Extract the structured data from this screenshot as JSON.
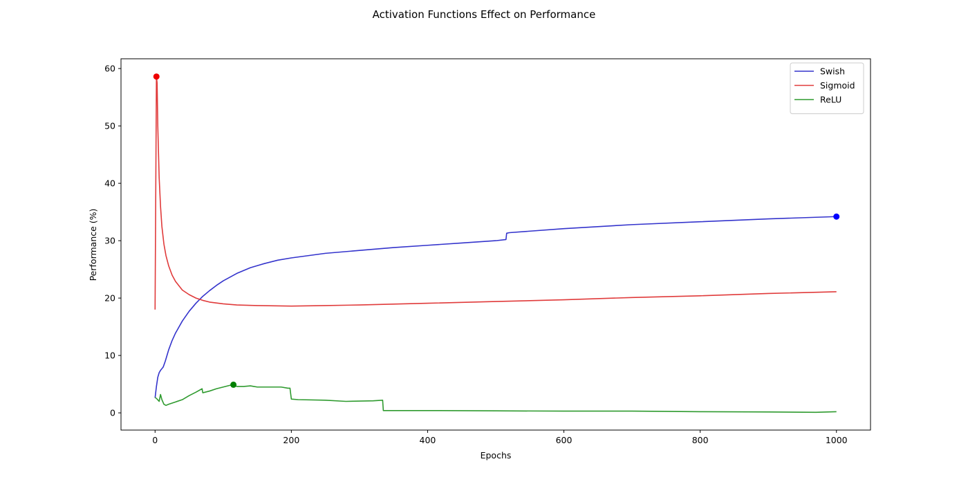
{
  "chart_data": {
    "type": "line",
    "title": "Activation Functions Effect on Performance",
    "xlabel": "Epochs",
    "ylabel": "Performance (%)",
    "xlim": [
      -50,
      1050
    ],
    "ylim": [
      -3,
      61.7
    ],
    "xticks": [
      0,
      200,
      400,
      600,
      800,
      1000
    ],
    "yticks": [
      0,
      10,
      20,
      30,
      40,
      50,
      60
    ],
    "grid": false,
    "legend_position": "upper-right",
    "series": [
      {
        "name": "Swish",
        "color": "#3333cc",
        "marker_color": "#0000ff",
        "x": [
          0,
          2,
          4,
          6,
          8,
          10,
          12,
          15,
          20,
          25,
          30,
          40,
          50,
          60,
          70,
          80,
          90,
          100,
          120,
          140,
          160,
          180,
          200,
          250,
          300,
          350,
          400,
          450,
          500,
          515,
          516,
          520,
          600,
          700,
          800,
          900,
          1000
        ],
        "y": [
          2.6,
          4.6,
          6.2,
          7.0,
          7.4,
          7.7,
          8.0,
          9.0,
          11.0,
          12.6,
          13.9,
          16.0,
          17.7,
          19.1,
          20.3,
          21.3,
          22.2,
          23.0,
          24.3,
          25.3,
          26.0,
          26.6,
          27.0,
          27.8,
          28.3,
          28.8,
          29.2,
          29.6,
          30.0,
          30.2,
          31.3,
          31.4,
          32.1,
          32.8,
          33.3,
          33.8,
          34.2
        ],
        "marker": {
          "x": 1000,
          "y": 34.2
        }
      },
      {
        "name": "Sigmoid",
        "color": "#e03a3a",
        "marker_color": "#ee0000",
        "x": [
          0,
          2,
          3,
          4,
          6,
          8,
          10,
          13,
          16,
          20,
          25,
          30,
          40,
          50,
          60,
          70,
          80,
          100,
          120,
          150,
          200,
          250,
          300,
          400,
          500,
          600,
          700,
          800,
          900,
          1000
        ],
        "y": [
          18.0,
          58.6,
          57.5,
          50.0,
          41.0,
          36.0,
          32.5,
          29.4,
          27.4,
          25.6,
          24.0,
          22.9,
          21.4,
          20.6,
          20.0,
          19.6,
          19.3,
          19.0,
          18.8,
          18.7,
          18.6,
          18.7,
          18.8,
          19.1,
          19.4,
          19.7,
          20.1,
          20.4,
          20.8,
          21.1
        ],
        "marker": {
          "x": 2,
          "y": 58.6
        }
      },
      {
        "name": "ReLU",
        "color": "#2e9a2e",
        "marker_color": "#008000",
        "x": [
          0,
          3,
          6,
          8,
          10,
          13,
          16,
          20,
          25,
          30,
          40,
          50,
          60,
          69,
          70,
          80,
          90,
          100,
          110,
          115,
          120,
          130,
          140,
          145,
          150,
          160,
          170,
          185,
          195,
          198,
          200,
          210,
          250,
          280,
          320,
          334,
          335,
          400,
          500,
          600,
          700,
          800,
          900,
          970,
          1000
        ],
        "y": [
          2.7,
          2.4,
          2.0,
          3.2,
          2.3,
          1.5,
          1.3,
          1.5,
          1.7,
          1.9,
          2.3,
          3.0,
          3.6,
          4.2,
          3.5,
          3.8,
          4.2,
          4.5,
          4.8,
          4.9,
          4.6,
          4.6,
          4.7,
          4.6,
          4.5,
          4.5,
          4.5,
          4.5,
          4.3,
          4.3,
          2.4,
          2.3,
          2.2,
          2.0,
          2.1,
          2.2,
          0.4,
          0.4,
          0.35,
          0.3,
          0.3,
          0.2,
          0.15,
          0.1,
          0.2
        ],
        "marker": {
          "x": 115,
          "y": 4.9
        }
      }
    ]
  }
}
